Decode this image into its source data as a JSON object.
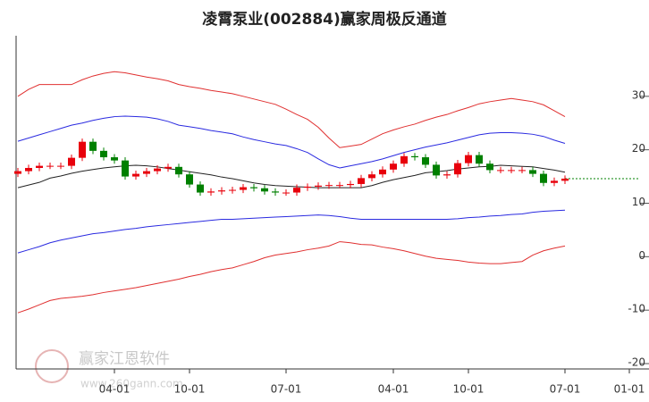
{
  "chart_data": {
    "type": "candlestick",
    "title": "凌霄泵业(002884)赢家周极反通道",
    "watermark": {
      "name": "赢家江恩软件",
      "url": "www.260gann.com"
    },
    "categories": [
      null,
      null,
      null,
      null,
      null,
      null,
      null,
      null,
      null,
      "04-01",
      null,
      null,
      null,
      null,
      null,
      null,
      "10-01",
      null,
      null,
      null,
      null,
      null,
      null,
      null,
      null,
      "07-01",
      null,
      null,
      null,
      null,
      null,
      null,
      null,
      null,
      null,
      "04-01",
      null,
      null,
      null,
      null,
      null,
      null,
      "10-01",
      null,
      null,
      null,
      null,
      null,
      null,
      null,
      null,
      "07-01",
      null,
      null,
      null,
      null,
      null,
      "01-01",
      null
    ],
    "open": [
      15.5,
      16,
      16.6,
      17,
      17,
      17,
      18.5,
      21.5,
      19.8,
      18.6,
      18,
      15,
      15.5,
      16,
      16.5,
      16.8,
      15.4,
      13.5,
      12,
      12.2,
      12.4,
      12.5,
      13,
      12.8,
      12.2,
      12,
      12,
      12.9,
      13.1,
      13.3,
      13.4,
      13.4,
      13.6,
      14.7,
      15.4,
      16.3,
      17.4,
      18.8,
      18.6,
      17.2,
      15.2,
      15.4,
      17.5,
      19,
      17.4,
      16.2,
      16.2,
      16.2,
      16.2,
      15.5,
      13.8,
      14.2,
      null,
      null,
      null,
      null,
      null,
      null,
      null
    ],
    "high": [
      16.6,
      17.2,
      17.6,
      17.6,
      17.6,
      19.1,
      22.1,
      22.1,
      20.4,
      19.2,
      18.6,
      16.1,
      16.6,
      17.1,
      17.4,
      17.4,
      16,
      14.1,
      12.8,
      13,
      13.1,
      13.6,
      13.6,
      13.4,
      12.8,
      12.6,
      13.5,
      13.7,
      13.9,
      14,
      14,
      14.2,
      15.3,
      16,
      16.9,
      18,
      19.4,
      19.4,
      19.2,
      17.8,
      16,
      18.1,
      19.6,
      19.6,
      18,
      16.8,
      16.8,
      16.8,
      16.8,
      16.1,
      14.8,
      15.2,
      null,
      null,
      null,
      null,
      null,
      null,
      null
    ],
    "low": [
      14.9,
      15.4,
      16,
      16.4,
      16.4,
      16.4,
      17.9,
      19.2,
      18,
      17.4,
      14.4,
      14.4,
      14.9,
      15.4,
      15.9,
      14.8,
      12.9,
      11.4,
      11.4,
      11.6,
      11.8,
      11.9,
      12.2,
      11.6,
      11.4,
      11.4,
      11.4,
      12.3,
      12.5,
      12.7,
      12.8,
      12.8,
      13,
      14.1,
      14.8,
      15.7,
      16.8,
      18,
      16.6,
      14.6,
      14.6,
      14.8,
      16.9,
      16.8,
      15.6,
      15.6,
      15.6,
      15.6,
      14.9,
      13.2,
      13.2,
      13.6,
      null,
      null,
      null,
      null,
      null,
      null,
      null
    ],
    "close": [
      16,
      16.6,
      17,
      17,
      17,
      18.5,
      21.5,
      19.8,
      18.6,
      18,
      15,
      15.5,
      16,
      16.5,
      16.8,
      15.4,
      13.5,
      12,
      12.2,
      12.4,
      12.5,
      13,
      12.8,
      12.2,
      12,
      12,
      12.9,
      13.1,
      13.3,
      13.4,
      13.4,
      13.6,
      14.7,
      15.4,
      16.3,
      17.4,
      18.8,
      18.6,
      17.2,
      15.2,
      15.4,
      17.5,
      19,
      17.4,
      16.2,
      16.2,
      16.2,
      16.2,
      15.5,
      13.8,
      14.2,
      14.6,
      null,
      null,
      null,
      null,
      null,
      null,
      null
    ],
    "up_color": "#e8000b",
    "down_color": "#008000",
    "series": [
      {
        "color": "#e03030",
        "values": [
          30,
          31.3,
          32.2,
          32.2,
          32.2,
          32.2,
          33.1,
          33.8,
          34.3,
          34.6,
          34.4,
          34,
          33.6,
          33.3,
          32.9,
          32.2,
          31.8,
          31.5,
          31.1,
          30.8,
          30.5,
          30,
          29.5,
          29,
          28.5,
          27.6,
          26.6,
          25.7,
          24.2,
          22.2,
          20.4,
          20.7,
          21,
          22,
          23,
          23.7,
          24.3,
          24.8,
          25.5,
          26.1,
          26.6,
          27.3,
          27.9,
          28.6,
          29,
          29.3,
          29.6,
          29.3,
          29,
          28.4,
          27.3,
          26.2,
          null,
          null,
          null,
          null,
          null,
          null,
          null
        ]
      },
      {
        "color": "#2a2ae0",
        "values": [
          21.6,
          22.2,
          22.8,
          23.4,
          24,
          24.6,
          25,
          25.5,
          25.9,
          26.2,
          26.3,
          26.2,
          26.1,
          25.8,
          25.3,
          24.6,
          24.3,
          24,
          23.6,
          23.3,
          23,
          22.4,
          21.9,
          21.5,
          21.1,
          20.8,
          20.2,
          19.5,
          18.3,
          17.2,
          16.6,
          17,
          17.4,
          17.8,
          18.3,
          18.9,
          19.5,
          20,
          20.5,
          20.9,
          21.3,
          21.8,
          22.3,
          22.8,
          23.1,
          23.2,
          23.2,
          23.1,
          22.9,
          22.5,
          21.8,
          21.2,
          null,
          null,
          null,
          null,
          null,
          null,
          null
        ]
      },
      {
        "color": "#222222",
        "values": [
          12.9,
          13.4,
          13.9,
          14.7,
          15.1,
          15.6,
          16,
          16.3,
          16.6,
          16.8,
          17,
          17.1,
          17,
          16.8,
          16.5,
          16.2,
          15.9,
          15.6,
          15.3,
          14.9,
          14.6,
          14.2,
          13.8,
          13.5,
          13.3,
          13.2,
          13.1,
          13,
          12.9,
          12.9,
          12.9,
          12.9,
          12.9,
          13.3,
          13.9,
          14.4,
          14.8,
          15.2,
          15.7,
          15.9,
          16.1,
          16.4,
          16.6,
          16.8,
          16.9,
          17.1,
          17,
          16.9,
          16.8,
          16.5,
          16.2,
          15.8,
          null,
          null,
          null,
          null,
          null,
          null,
          null
        ]
      },
      {
        "color": "#2a2ae0",
        "values": [
          0.7,
          1.3,
          1.9,
          2.6,
          3.1,
          3.5,
          3.9,
          4.3,
          4.5,
          4.8,
          5.1,
          5.3,
          5.6,
          5.8,
          6,
          6.2,
          6.4,
          6.6,
          6.8,
          7,
          7,
          7.1,
          7.2,
          7.3,
          7.4,
          7.5,
          7.6,
          7.7,
          7.8,
          7.7,
          7.5,
          7.2,
          7,
          7,
          7,
          7,
          7,
          7,
          7,
          7,
          7,
          7.1,
          7.3,
          7.4,
          7.6,
          7.7,
          7.9,
          8,
          8.3,
          8.5,
          8.6,
          8.7,
          null,
          null,
          null,
          null,
          null,
          null,
          null
        ]
      },
      {
        "color": "#e03030",
        "values": [
          -10.5,
          -9.8,
          -9,
          -8.2,
          -7.8,
          -7.6,
          -7.4,
          -7.1,
          -6.7,
          -6.4,
          -6.1,
          -5.8,
          -5.4,
          -5,
          -4.6,
          -4.2,
          -3.7,
          -3.3,
          -2.8,
          -2.4,
          -2.1,
          -1.5,
          -0.9,
          -0.2,
          0.3,
          0.6,
          0.9,
          1.3,
          1.6,
          2,
          2.8,
          2.6,
          2.3,
          2.2,
          1.8,
          1.5,
          1.1,
          0.6,
          0.1,
          -0.3,
          -0.5,
          -0.7,
          -1,
          -1.2,
          -1.3,
          -1.3,
          -1.1,
          -0.9,
          0.3,
          1.1,
          1.6,
          2,
          null,
          null,
          null,
          null,
          null,
          null,
          null
        ]
      },
      {
        "color": "#008000",
        "dotted": true,
        "values": [
          null,
          null,
          null,
          null,
          null,
          null,
          null,
          null,
          null,
          null,
          null,
          null,
          null,
          null,
          null,
          null,
          null,
          null,
          null,
          null,
          null,
          null,
          null,
          null,
          null,
          null,
          null,
          null,
          null,
          null,
          null,
          null,
          null,
          null,
          null,
          null,
          null,
          null,
          null,
          null,
          null,
          null,
          null,
          null,
          null,
          null,
          null,
          null,
          null,
          null,
          null,
          14.6,
          14.6,
          14.6,
          14.6,
          14.6,
          14.6,
          14.6,
          14.6
        ]
      }
    ],
    "ylim": [
      -21,
      41
    ],
    "yticks": [
      30,
      20,
      10,
      0,
      -10,
      -20
    ]
  }
}
